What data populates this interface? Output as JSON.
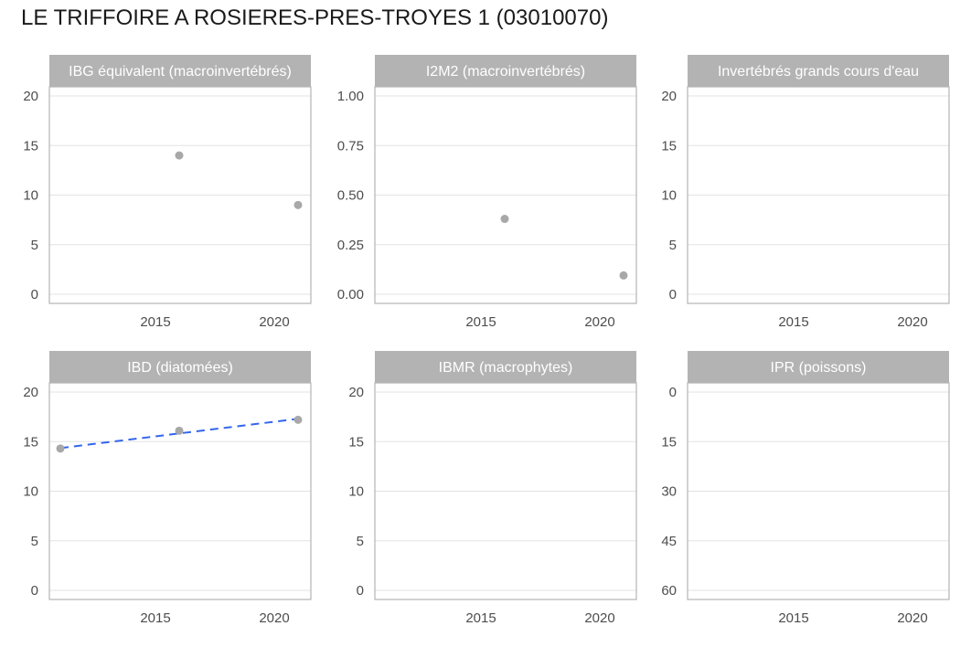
{
  "title": "LE TRIFFOIRE A ROSIERES-PRES-TROYES 1 (03010070)",
  "colors": {
    "strip": "#b3b3b3",
    "border": "#b3b3b3",
    "grid": "#e3e3e3",
    "points": "#a8a8a8",
    "trend": "#3366ee"
  },
  "chart_data": [
    {
      "type": "scatter",
      "title": "IBG équivalent (macroinvertébrés)",
      "xlim": [
        2011,
        2021
      ],
      "x_ticks": [
        2015,
        2020
      ],
      "x_tick_labels": [
        "2015",
        "2020"
      ],
      "ylim": [
        0,
        20
      ],
      "reversed_y": false,
      "y_ticks": [
        0,
        5,
        10,
        15,
        20
      ],
      "y_tick_labels": [
        "0",
        "5",
        "10",
        "15",
        "20"
      ],
      "points": [
        {
          "x": 2016,
          "y": 14
        },
        {
          "x": 2021,
          "y": 9
        }
      ],
      "trend": null
    },
    {
      "type": "scatter",
      "title": "I2M2 (macroinvertébrés)",
      "xlim": [
        2011,
        2021
      ],
      "x_ticks": [
        2015,
        2020
      ],
      "x_tick_labels": [
        "2015",
        "2020"
      ],
      "ylim": [
        0,
        1
      ],
      "reversed_y": false,
      "y_ticks": [
        0,
        0.25,
        0.5,
        0.75,
        1
      ],
      "y_tick_labels": [
        "0.00",
        "0.25",
        "0.50",
        "0.75",
        "1.00"
      ],
      "points": [
        {
          "x": 2016,
          "y": 0.38
        },
        {
          "x": 2021,
          "y": 0.095
        }
      ],
      "trend": null
    },
    {
      "type": "scatter",
      "title": "Invertébrés grands cours d'eau",
      "xlim": [
        2011,
        2021
      ],
      "x_ticks": [
        2015,
        2020
      ],
      "x_tick_labels": [
        "2015",
        "2020"
      ],
      "ylim": [
        0,
        20
      ],
      "reversed_y": false,
      "y_ticks": [
        0,
        5,
        10,
        15,
        20
      ],
      "y_tick_labels": [
        "0",
        "5",
        "10",
        "15",
        "20"
      ],
      "points": [],
      "trend": null
    },
    {
      "type": "scatter",
      "title": "IBD (diatomées)",
      "xlim": [
        2011,
        2021
      ],
      "x_ticks": [
        2015,
        2020
      ],
      "x_tick_labels": [
        "2015",
        "2020"
      ],
      "ylim": [
        0,
        20
      ],
      "reversed_y": false,
      "y_ticks": [
        0,
        5,
        10,
        15,
        20
      ],
      "y_tick_labels": [
        "0",
        "5",
        "10",
        "15",
        "20"
      ],
      "points": [
        {
          "x": 2011,
          "y": 14.3
        },
        {
          "x": 2016,
          "y": 16.1
        },
        {
          "x": 2021,
          "y": 17.2
        }
      ],
      "trend": {
        "x": [
          2011,
          2021
        ],
        "y": [
          14.35,
          17.3
        ],
        "style": "dashed"
      }
    },
    {
      "type": "scatter",
      "title": "IBMR (macrophytes)",
      "xlim": [
        2011,
        2021
      ],
      "x_ticks": [
        2015,
        2020
      ],
      "x_tick_labels": [
        "2015",
        "2020"
      ],
      "ylim": [
        0,
        20
      ],
      "reversed_y": false,
      "y_ticks": [
        0,
        5,
        10,
        15,
        20
      ],
      "y_tick_labels": [
        "0",
        "5",
        "10",
        "15",
        "20"
      ],
      "points": [],
      "trend": null
    },
    {
      "type": "scatter",
      "title": "IPR (poissons)",
      "xlim": [
        2011,
        2021
      ],
      "x_ticks": [
        2015,
        2020
      ],
      "x_tick_labels": [
        "2015",
        "2020"
      ],
      "ylim": [
        0,
        60
      ],
      "reversed_y": true,
      "y_ticks": [
        0,
        15,
        30,
        45,
        60
      ],
      "y_tick_labels": [
        "0",
        "15",
        "30",
        "45",
        "60"
      ],
      "points": [],
      "trend": null
    }
  ]
}
